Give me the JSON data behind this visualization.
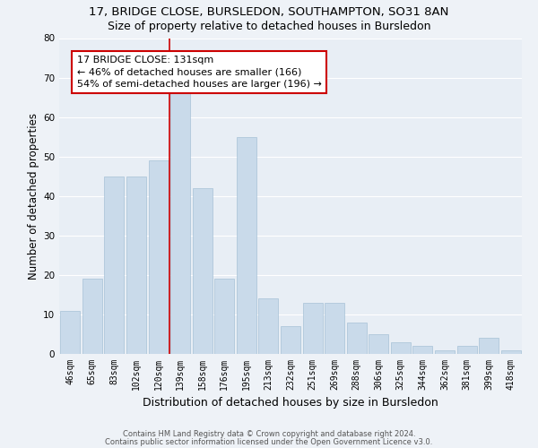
{
  "title_line1": "17, BRIDGE CLOSE, BURSLEDON, SOUTHAMPTON, SO31 8AN",
  "title_line2": "Size of property relative to detached houses in Bursledon",
  "xlabel": "Distribution of detached houses by size in Bursledon",
  "ylabel": "Number of detached properties",
  "bar_color": "#c9daea",
  "bar_edge_color": "#9ab8d0",
  "categories": [
    "46sqm",
    "65sqm",
    "83sqm",
    "102sqm",
    "120sqm",
    "139sqm",
    "158sqm",
    "176sqm",
    "195sqm",
    "213sqm",
    "232sqm",
    "251sqm",
    "269sqm",
    "288sqm",
    "306sqm",
    "325sqm",
    "344sqm",
    "362sqm",
    "381sqm",
    "399sqm",
    "418sqm"
  ],
  "values": [
    11,
    19,
    45,
    45,
    49,
    66,
    42,
    19,
    55,
    14,
    7,
    13,
    13,
    8,
    5,
    3,
    2,
    1,
    2,
    4,
    1
  ],
  "ylim": [
    0,
    80
  ],
  "yticks": [
    0,
    10,
    20,
    30,
    40,
    50,
    60,
    70,
    80
  ],
  "vline_x": 4.5,
  "vline_color": "#cc0000",
  "annotation_text": "17 BRIDGE CLOSE: 131sqm\n← 46% of detached houses are smaller (166)\n54% of semi-detached houses are larger (196) →",
  "annotation_box_color": "#ffffff",
  "annotation_box_edge_color": "#cc0000",
  "footer_line1": "Contains HM Land Registry data © Crown copyright and database right 2024.",
  "footer_line2": "Contains public sector information licensed under the Open Government Licence v3.0.",
  "background_color": "#eef2f7",
  "axes_background_color": "#e8eef5",
  "grid_color": "#ffffff",
  "title_fontsize": 9.5,
  "subtitle_fontsize": 9,
  "tick_fontsize": 7,
  "ylabel_fontsize": 8.5,
  "xlabel_fontsize": 9,
  "annotation_fontsize": 8,
  "footer_fontsize": 6
}
